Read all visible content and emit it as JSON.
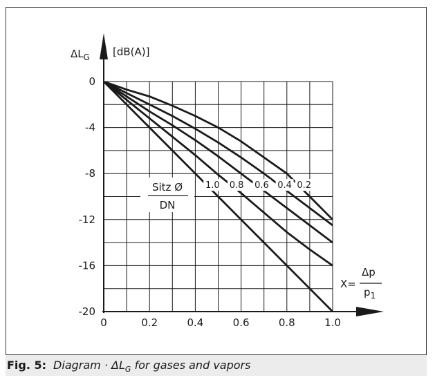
{
  "chart_data": {
    "type": "line",
    "ylabel": "ΔL",
    "ylabel_sub": "G",
    "yunit": "[dB(A)]",
    "xlabel_prefix": "X=",
    "xlabel_num": "Δp",
    "xlabel_den": "p",
    "xlabel_den_sub": "1",
    "xlim": [
      0,
      1.0
    ],
    "ylim": [
      -20,
      0
    ],
    "grid": true,
    "x_ticks": [
      "0",
      "0.2",
      "0.4",
      "0.6",
      "0.8",
      "1.0"
    ],
    "y_ticks": [
      "0",
      "-4",
      "-8",
      "-12",
      "-16",
      "-20"
    ],
    "legend_title_num": "Sitz Ø",
    "legend_title_den": "DN",
    "series": [
      {
        "name": "1.0",
        "x": [
          0,
          0.1,
          0.2,
          0.3,
          0.4,
          0.5,
          0.6,
          0.7,
          0.8,
          0.9,
          1.0
        ],
        "y": [
          0,
          -2,
          -4,
          -6,
          -8,
          -10,
          -12,
          -14,
          -16,
          -18,
          -20
        ]
      },
      {
        "name": "0.8",
        "x": [
          0,
          0.1,
          0.2,
          0.3,
          0.4,
          0.5,
          0.6,
          0.7,
          0.8,
          0.9,
          1.0
        ],
        "y": [
          0,
          -1.6,
          -3.2,
          -4.8,
          -6.4,
          -8.1,
          -9.7,
          -11.4,
          -13.1,
          -14.6,
          -16
        ]
      },
      {
        "name": "0.6",
        "x": [
          0,
          0.1,
          0.2,
          0.3,
          0.4,
          0.5,
          0.6,
          0.7,
          0.8,
          0.9,
          1.0
        ],
        "y": [
          0,
          -1.3,
          -2.6,
          -3.8,
          -5.1,
          -6.5,
          -8.0,
          -9.5,
          -11.0,
          -12.5,
          -14
        ]
      },
      {
        "name": "0.4",
        "x": [
          0,
          0.1,
          0.2,
          0.3,
          0.4,
          0.5,
          0.6,
          0.7,
          0.8,
          0.9,
          1.0
        ],
        "y": [
          0,
          -1.0,
          -2.0,
          -3.0,
          -4.1,
          -5.3,
          -6.6,
          -8.0,
          -9.5,
          -11.0,
          -12.5
        ]
      },
      {
        "name": "0.2",
        "x": [
          0,
          0.1,
          0.2,
          0.3,
          0.4,
          0.5,
          0.6,
          0.7,
          0.8,
          0.9,
          1.0
        ],
        "y": [
          0,
          -0.7,
          -1.3,
          -2.1,
          -3.0,
          -4.0,
          -5.2,
          -6.6,
          -8.0,
          -10.0,
          -12.0
        ]
      }
    ],
    "series_color": "#1a1a1a"
  },
  "caption": {
    "label": "Fig. 5:",
    "text_prefix": "Diagram · ΔL",
    "text_sub": "G",
    "text_suffix": " for gases and vapors"
  }
}
